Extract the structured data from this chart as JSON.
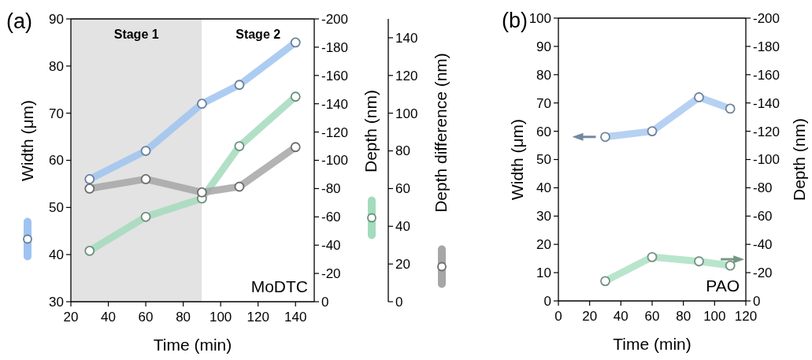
{
  "chart_data": [
    {
      "type": "line",
      "xlabel": "Time (min)",
      "ylabel": "Width (μm)",
      "y2label": "Depth (nm)",
      "y3label": "Depth difference (nm)",
      "xlim": [
        20,
        150
      ],
      "xticks": [
        20,
        40,
        60,
        80,
        100,
        120,
        140
      ],
      "ylim": [
        30,
        90
      ],
      "yticks": [
        30,
        40,
        50,
        60,
        70,
        80,
        90
      ],
      "y2lim": [
        0,
        -200
      ],
      "y2ticks": [
        0,
        -20,
        -40,
        -60,
        -80,
        -100,
        -120,
        -140,
        -160,
        -180,
        -200
      ],
      "y3lim": [
        0,
        150
      ],
      "y3ticks": [
        0,
        20,
        40,
        60,
        80,
        100,
        120,
        140
      ],
      "marker": "circle",
      "x": [
        30,
        60,
        90,
        110,
        140
      ],
      "series": [
        {
          "color": "#9fc3f0",
          "values": [
            56,
            62,
            72,
            76,
            85
          ]
        },
        {
          "color": "#a3dbbd",
          "axis": "y2",
          "values": [
            -36,
            -60,
            -73,
            -110,
            -145
          ]
        },
        {
          "color": "#a6a6a6",
          "axis": "y3",
          "values": [
            60,
            65,
            58,
            61,
            82
          ]
        }
      ],
      "bands": [
        {
          "axis": "x",
          "from": 20,
          "to": 90,
          "label": "Stage 1",
          "color": "#e3e3e3"
        },
        {
          "axis": "x",
          "from": 90,
          "to": 150,
          "label": "Stage 2",
          "color": "#ffffff"
        }
      ],
      "annotations": [
        "(a)",
        "MoDTC"
      ]
    },
    {
      "type": "line",
      "xlabel": "Time (min)",
      "ylabel": "Width (μm)",
      "y2label": "Depth (nm)",
      "xlim": [
        0,
        120
      ],
      "xticks": [
        0,
        20,
        40,
        60,
        80,
        100,
        120
      ],
      "ylim": [
        0,
        100
      ],
      "yticks": [
        0,
        10,
        20,
        30,
        40,
        50,
        60,
        70,
        80,
        90,
        100
      ],
      "y2lim": [
        0,
        -200
      ],
      "y2ticks": [
        0,
        -20,
        -40,
        -60,
        -80,
        -100,
        -120,
        -140,
        -160,
        -180,
        -200
      ],
      "marker": "circle",
      "x": [
        30,
        60,
        90,
        110
      ],
      "series": [
        {
          "color": "#a9c9f0",
          "values": [
            58,
            60,
            72,
            68
          ]
        },
        {
          "color": "#ade0c4",
          "axis": "y2",
          "values": [
            -14,
            -31,
            -28,
            -25
          ]
        }
      ],
      "annotations": [
        "(b)",
        "PAO"
      ]
    }
  ]
}
